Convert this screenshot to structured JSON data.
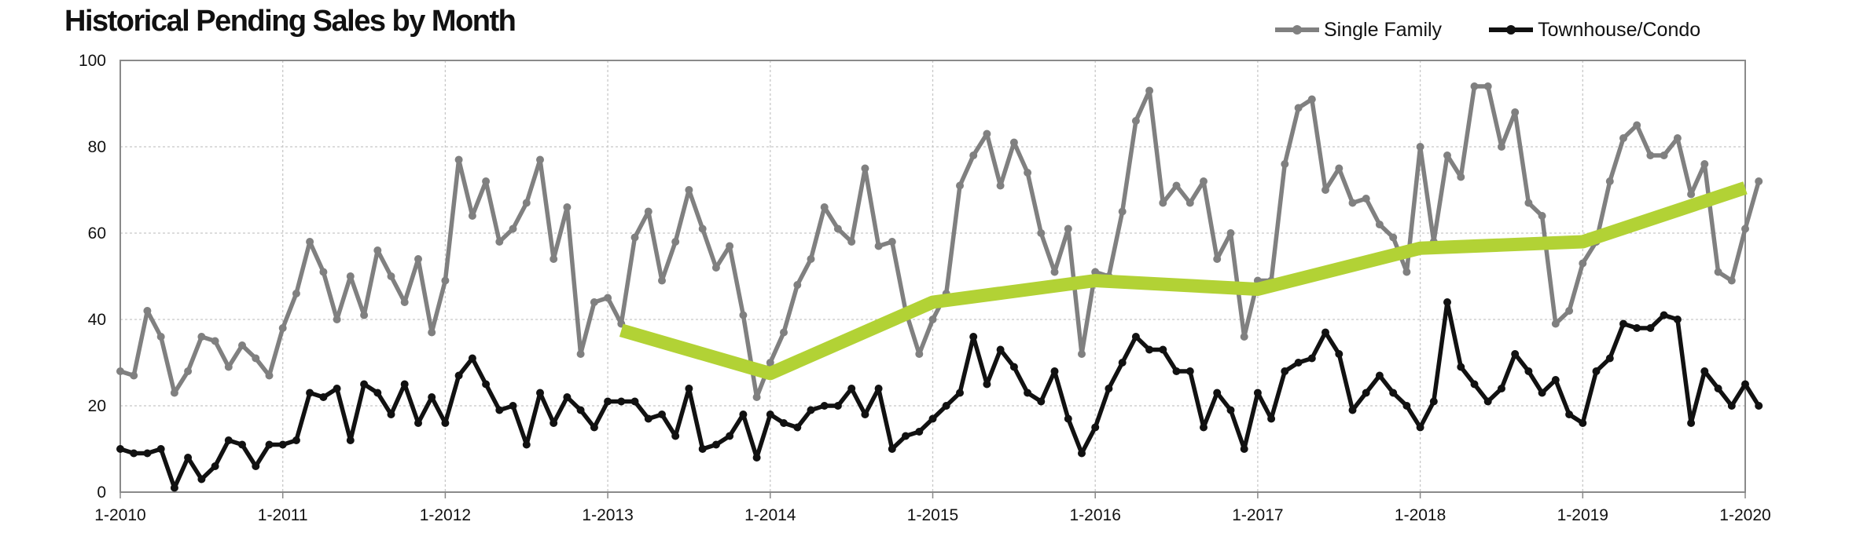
{
  "chart_data": {
    "type": "line",
    "title": "Historical Pending Sales by Month",
    "xlabel": "",
    "ylabel": "",
    "x_tick_labels": [
      "1-2010",
      "1-2011",
      "1-2012",
      "1-2013",
      "1-2014",
      "1-2015",
      "1-2016",
      "1-2017",
      "1-2018",
      "1-2019",
      "1-2020"
    ],
    "y_tick_labels": [
      "0",
      "20",
      "40",
      "60",
      "80",
      "100"
    ],
    "ylim": [
      0,
      100
    ],
    "xlim": [
      "2010-01",
      "2020-01"
    ],
    "grid": true,
    "legend_position": "top-right",
    "series": [
      {
        "name": "Single Family",
        "color": "#808080",
        "start": "2010-01",
        "values": [
          28,
          27,
          42,
          36,
          23,
          28,
          36,
          35,
          29,
          34,
          31,
          27,
          38,
          46,
          58,
          51,
          40,
          50,
          41,
          56,
          50,
          44,
          54,
          37,
          49,
          77,
          64,
          72,
          58,
          61,
          67,
          77,
          54,
          66,
          32,
          44,
          45,
          39,
          59,
          65,
          49,
          58,
          70,
          61,
          52,
          57,
          41,
          22,
          30,
          37,
          48,
          54,
          66,
          61,
          58,
          75,
          57,
          58,
          42,
          32,
          40,
          46,
          71,
          78,
          83,
          71,
          81,
          74,
          60,
          51,
          61,
          32,
          51,
          50,
          65,
          86,
          93,
          67,
          71,
          67,
          72,
          54,
          60,
          36,
          49,
          49,
          76,
          89,
          91,
          70,
          75,
          67,
          68,
          62,
          59,
          51,
          80,
          58,
          78,
          73,
          94,
          94,
          80,
          88,
          67,
          64,
          39,
          42,
          53,
          58,
          72,
          82,
          85,
          78,
          78,
          82,
          69,
          76,
          51,
          49,
          61,
          72
        ]
      },
      {
        "name": "Townhouse/Condo",
        "color": "#111111",
        "start": "2010-01",
        "values": [
          10,
          9,
          9,
          10,
          1,
          8,
          3,
          6,
          12,
          11,
          6,
          11,
          11,
          12,
          23,
          22,
          24,
          12,
          25,
          23,
          18,
          25,
          16,
          22,
          16,
          27,
          31,
          25,
          19,
          20,
          11,
          23,
          16,
          22,
          19,
          15,
          21,
          21,
          21,
          17,
          18,
          13,
          24,
          10,
          11,
          13,
          18,
          8,
          18,
          16,
          15,
          19,
          20,
          20,
          24,
          18,
          24,
          10,
          13,
          14,
          17,
          20,
          23,
          36,
          25,
          33,
          29,
          23,
          21,
          28,
          17,
          9,
          15,
          24,
          30,
          36,
          33,
          33,
          28,
          28,
          15,
          23,
          19,
          10,
          23,
          17,
          28,
          30,
          31,
          37,
          32,
          19,
          23,
          27,
          23,
          20,
          15,
          21,
          44,
          29,
          25,
          21,
          24,
          32,
          28,
          23,
          26,
          18,
          16,
          28,
          31,
          39,
          38,
          38,
          41,
          40,
          16,
          28,
          24,
          20,
          25,
          20
        ]
      },
      {
        "name": "",
        "color": "#b2d235",
        "x": [
          "2013-02",
          "2014-01",
          "2015-01",
          "2016-01",
          "2017-01",
          "2018-01",
          "2019-01",
          "2020-01"
        ],
        "values": [
          37.5,
          27.5,
          44,
          49,
          47,
          56.5,
          58,
          70.5
        ]
      }
    ]
  }
}
